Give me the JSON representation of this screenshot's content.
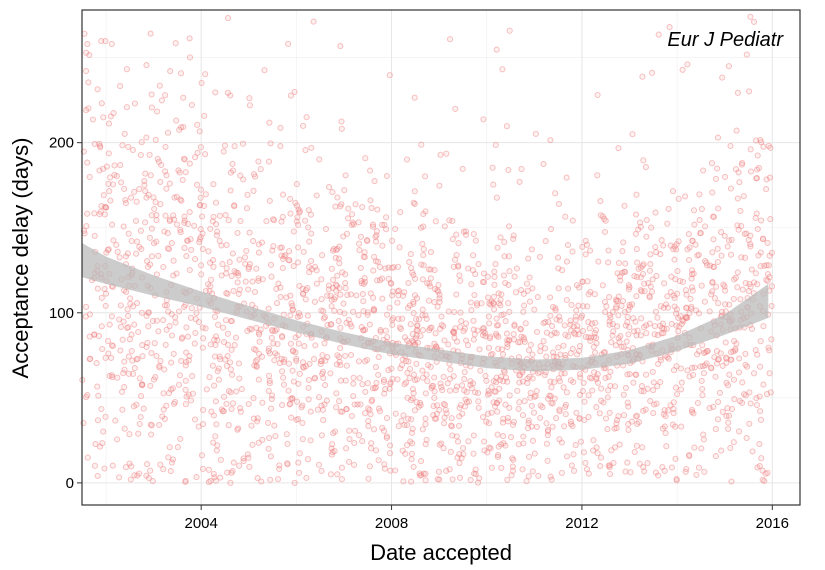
{
  "chart_data": {
    "type": "scatter",
    "title": "",
    "annotation": "Eur J Pediatr",
    "xlabel": "Date accepted",
    "ylabel": "Acceptance delay (days)",
    "x_ticks": [
      "2004",
      "2008",
      "2012",
      "2016"
    ],
    "y_ticks": [
      "0",
      "100",
      "200"
    ],
    "xlim": [
      "2001-07-01",
      "2016-08-01"
    ],
    "ylim": [
      -13,
      278
    ],
    "grid": true,
    "point_color": "#f08080",
    "point_count": 2600,
    "point_date_range": [
      "2001-07-01",
      "2016-01-01"
    ],
    "smooth": {
      "method": "loess",
      "color": "#bbbbbb",
      "x": [
        "2001-07-01",
        "2002-01-01",
        "2003-01-01",
        "2004-01-01",
        "2005-01-01",
        "2006-01-01",
        "2007-01-01",
        "2008-01-01",
        "2009-01-01",
        "2010-01-01",
        "2011-01-01",
        "2012-01-01",
        "2013-01-01",
        "2014-01-01",
        "2015-01-01",
        "2015-12-01"
      ],
      "y": [
        131,
        125,
        116,
        108,
        100,
        92,
        85,
        79,
        75,
        71,
        69,
        70,
        74,
        82,
        93,
        107
      ],
      "band": [
        10,
        8,
        6,
        4.5,
        4,
        3.5,
        3.5,
        3.5,
        3.5,
        3.5,
        3.5,
        3.5,
        4,
        4.5,
        6,
        10
      ]
    }
  }
}
